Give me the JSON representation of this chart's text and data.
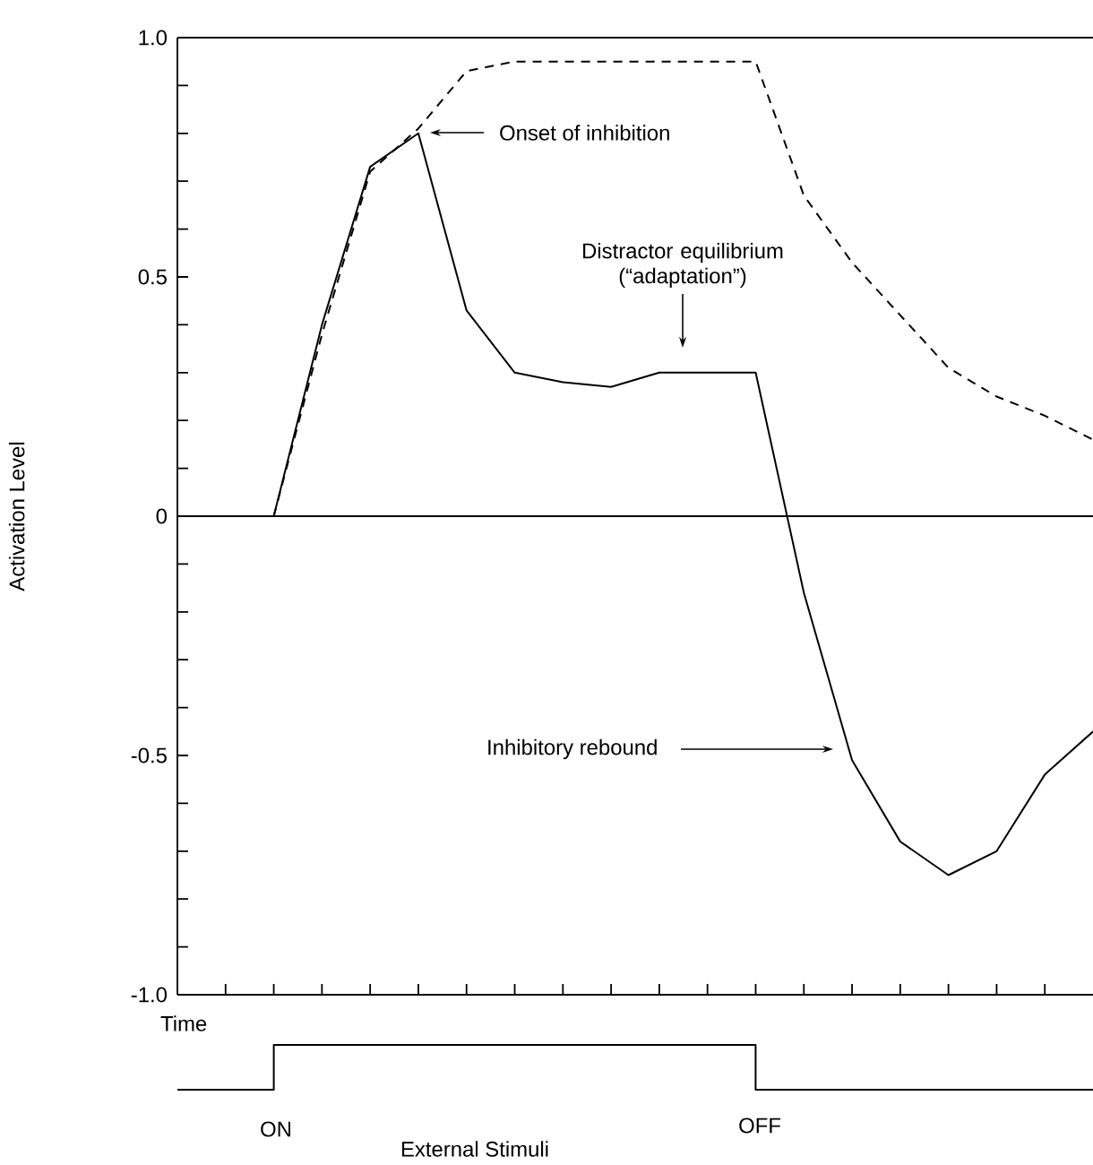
{
  "chart_data": [
    {
      "type": "line",
      "ylabel": "Activation Level",
      "xlabel": "Time",
      "categories": [
        null,
        null,
        null,
        null,
        null,
        null,
        null,
        null,
        null,
        null,
        null,
        null,
        null,
        null,
        null,
        null,
        null,
        null,
        null,
        null
      ],
      "series": [
        {
          "color": "#000000",
          "line_style": "solid",
          "values": [
            null,
            null,
            0,
            0.4,
            0.73,
            0.8,
            0.43,
            0.3,
            0.28,
            0.27,
            0.3,
            0.3,
            0.3,
            -0.16,
            -0.51,
            -0.68,
            -0.75,
            -0.7,
            -0.54,
            -0.45
          ]
        },
        {
          "color": "#000000",
          "line_style": "dashed",
          "values": [
            null,
            null,
            0,
            0.38,
            0.72,
            0.81,
            0.93,
            0.95,
            0.95,
            0.95,
            0.95,
            0.95,
            0.95,
            0.67,
            0.53,
            0.42,
            0.31,
            0.25,
            0.21,
            0.16
          ]
        }
      ],
      "ylim": [
        -1.0,
        1.0
      ],
      "yticks": [
        {
          "value": -1.0,
          "label": "-1.0"
        },
        {
          "value": -0.9,
          "label": null
        },
        {
          "value": -0.8,
          "label": null
        },
        {
          "value": -0.7,
          "label": null
        },
        {
          "value": -0.6,
          "label": null
        },
        {
          "value": -0.5,
          "label": "-0.5"
        },
        {
          "value": -0.4,
          "label": null
        },
        {
          "value": -0.3,
          "label": null
        },
        {
          "value": -0.2,
          "label": null
        },
        {
          "value": -0.1,
          "label": null
        },
        {
          "value": 0,
          "label": "0"
        },
        {
          "value": 0.1,
          "label": null
        },
        {
          "value": 0.2,
          "label": null
        },
        {
          "value": 0.3,
          "label": null
        },
        {
          "value": 0.4,
          "label": null
        },
        {
          "value": 0.5,
          "label": "0.5"
        },
        {
          "value": 0.6,
          "label": null
        },
        {
          "value": 0.7,
          "label": null
        },
        {
          "value": 0.8,
          "label": null
        },
        {
          "value": 0.9,
          "label": null
        },
        {
          "value": 1.0,
          "label": "1.0"
        }
      ],
      "ref_lines": [
        {
          "axis": "y",
          "value": 0
        }
      ],
      "tick_labels": "y",
      "annotations": [
        "Onset of inhibition",
        "Distractor equilibrium (“adaptation”)",
        "Inhibitory rebound",
        "ON",
        "OFF",
        "External Stimuli"
      ]
    }
  ]
}
